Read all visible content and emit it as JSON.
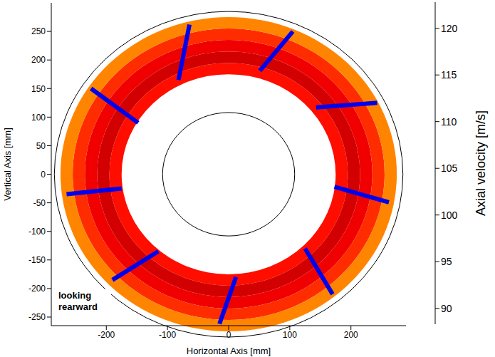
{
  "chart_data": {
    "type": "heatmap",
    "x_label": "Horizontal Axis [mm]",
    "y_label": "Vertical Axis [mm]",
    "xlim": [
      -290,
      290
    ],
    "xticks": [
      -200,
      -100,
      0,
      100,
      200
    ],
    "ylim": [
      -265,
      300
    ],
    "yticks": [
      -250,
      -200,
      -150,
      -100,
      -50,
      0,
      50,
      100,
      150,
      200,
      250
    ],
    "annotation": "looking rearward",
    "colorbar": {
      "label": "Axial velocity [m/s]",
      "range": [
        88.3,
        122.8
      ],
      "ticks": [
        90,
        95,
        100,
        105,
        110,
        115,
        120
      ]
    },
    "casing_radius": 285,
    "hub_radius": 108,
    "ring_edges": [
      175,
      195,
      215,
      235,
      255,
      275
    ],
    "ring_values": [
      118,
      120,
      119,
      117,
      114
    ],
    "wakes": {
      "value": 92,
      "inner": [
        [
          -82,
          165
        ],
        [
          51,
          181
        ],
        [
          143,
          117
        ],
        [
          173,
          -22
        ],
        [
          125,
          -130
        ],
        [
          12,
          -180
        ],
        [
          -115,
          -135
        ],
        [
          -175,
          -25
        ],
        [
          -148,
          90
        ]
      ],
      "outer": [
        [
          -64,
          262
        ],
        [
          105,
          250
        ],
        [
          243,
          125
        ],
        [
          262,
          -49
        ],
        [
          170,
          -210
        ],
        [
          -15,
          -262
        ],
        [
          -190,
          -185
        ],
        [
          -265,
          -35
        ],
        [
          -225,
          150
        ]
      ]
    }
  }
}
